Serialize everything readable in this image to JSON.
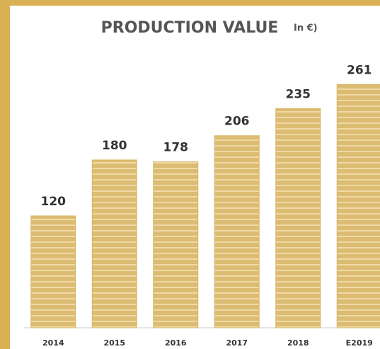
{
  "chart_data": {
    "type": "bar",
    "title": "PRODUCTION VALUE",
    "subtitle": "In €)",
    "categories": [
      "2014",
      "2015",
      "2016",
      "2017",
      "2018",
      "E2019"
    ],
    "values": [
      120,
      180,
      178,
      206,
      235,
      261
    ],
    "color": "#d8b565"
  }
}
